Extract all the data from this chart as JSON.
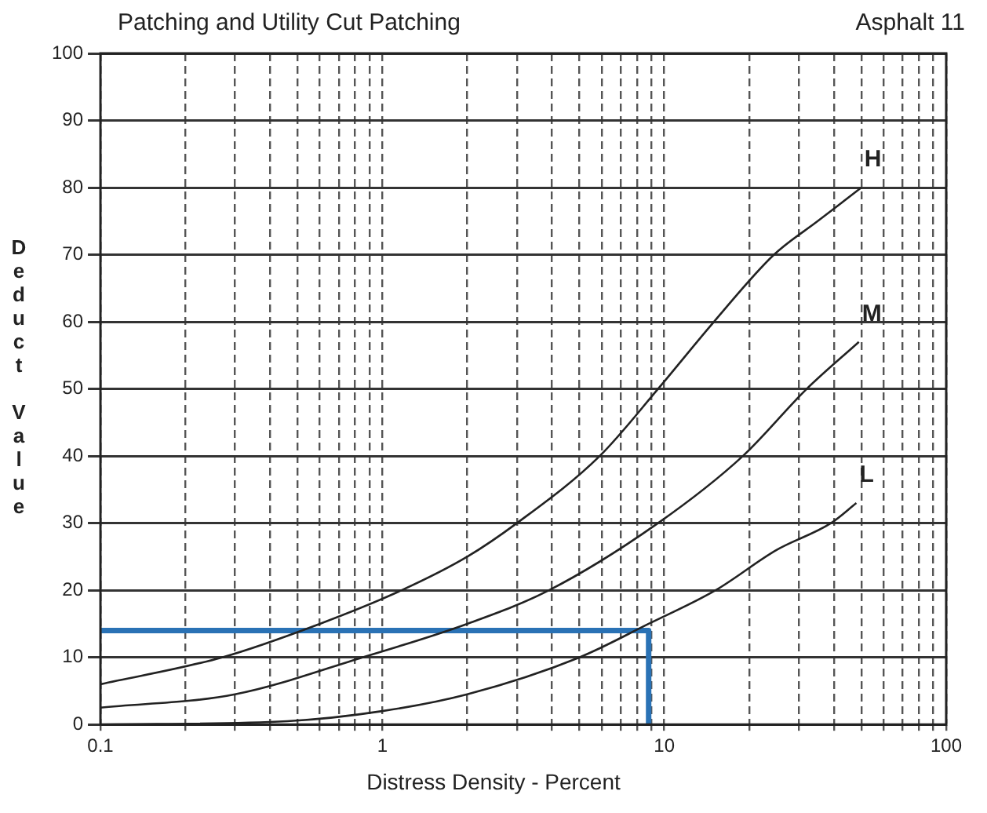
{
  "chart_data": {
    "type": "line",
    "title": "Patching and Utility Cut Patching",
    "subtitle": "Asphalt 11",
    "xlabel": "Distress Density - Percent",
    "ylabel": "Deduct Value",
    "log": "x",
    "grid": true,
    "legend": false,
    "marker": "none",
    "line_style": "solid",
    "xlim": [
      0.1,
      100
    ],
    "ylim": [
      0,
      100
    ],
    "xticks": [
      0.1,
      {
        "value": 0.2,
        "label": null
      },
      {
        "value": 0.3,
        "label": null
      },
      {
        "value": 0.4,
        "label": null
      },
      {
        "value": 0.5,
        "label": null
      },
      {
        "value": 0.6,
        "label": null
      },
      {
        "value": 0.7,
        "label": null
      },
      {
        "value": 0.8,
        "label": null
      },
      {
        "value": 0.9,
        "label": null
      },
      1,
      {
        "value": 2,
        "label": null
      },
      {
        "value": 3,
        "label": null
      },
      {
        "value": 4,
        "label": null
      },
      {
        "value": 5,
        "label": null
      },
      {
        "value": 6,
        "label": null
      },
      {
        "value": 7,
        "label": null
      },
      {
        "value": 8,
        "label": null
      },
      {
        "value": 9,
        "label": null
      },
      10,
      {
        "value": 20,
        "label": null
      },
      {
        "value": 30,
        "label": null
      },
      {
        "value": 40,
        "label": null
      },
      {
        "value": 50,
        "label": null
      },
      {
        "value": 60,
        "label": null
      },
      {
        "value": 70,
        "label": null
      },
      {
        "value": 80,
        "label": null
      },
      {
        "value": 90,
        "label": null
      },
      100
    ],
    "yticks": [
      0,
      10,
      20,
      30,
      40,
      50,
      60,
      70,
      80,
      90,
      100
    ],
    "series": [
      {
        "name": "H",
        "color": "#222222",
        "x": [
          0.1,
          0.27,
          0.6,
          1.17,
          2,
          3,
          5.9,
          9.5,
          15,
          24.5,
          35,
          50
        ],
        "values": [
          6,
          10,
          15,
          20,
          25,
          30,
          40,
          50,
          60,
          70,
          75,
          80
        ]
      },
      {
        "name": "M",
        "color": "#222222",
        "x": [
          0.1,
          0.3,
          0.85,
          2,
          3.9,
          9.5,
          19,
          32,
          49
        ],
        "values": [
          2.5,
          4.5,
          10,
          15,
          20,
          30,
          40,
          50,
          57
        ]
      },
      {
        "name": "L",
        "color": "#222222",
        "x": [
          0.1,
          0.46,
          1,
          2,
          5,
          8.8,
          15.2,
          25,
          39,
          48
        ],
        "values": [
          0,
          0.5,
          2,
          4.5,
          10,
          15,
          20,
          26,
          30,
          33
        ]
      },
      {
        "color": "#2a72b5",
        "x": [
          0.1,
          8.8,
          8.8
        ],
        "values": [
          14,
          14,
          0
        ]
      }
    ]
  }
}
